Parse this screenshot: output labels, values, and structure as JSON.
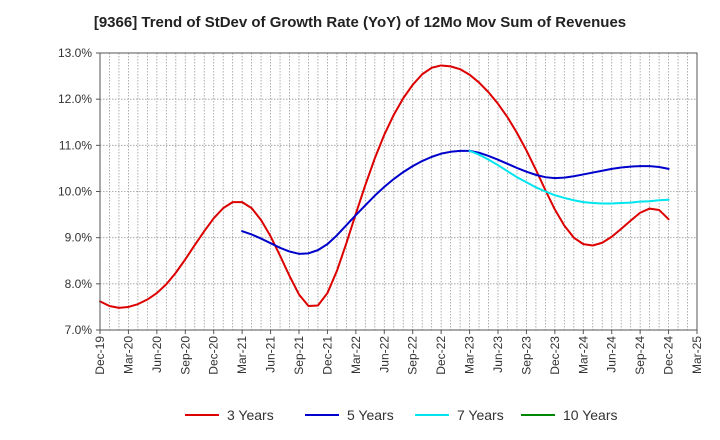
{
  "chart_data": {
    "type": "line",
    "title": "[9366]  Trend of StDev of Growth Rate (YoY) of 12Mo Mov Sum of Revenues",
    "xlabel": "",
    "ylabel": "",
    "ylim": [
      7.0,
      13.0
    ],
    "y_ticks": [
      7.0,
      8.0,
      9.0,
      10.0,
      11.0,
      12.0,
      13.0
    ],
    "y_tick_labels": [
      "7.0%",
      "8.0%",
      "9.0%",
      "10.0%",
      "11.0%",
      "12.0%",
      "13.0%"
    ],
    "x_start": "Dec-19",
    "x_range_months": [
      0,
      63
    ],
    "x_tick_labels": [
      "Dec-19",
      "Mar-20",
      "Jun-20",
      "Sep-20",
      "Dec-20",
      "Mar-21",
      "Jun-21",
      "Sep-21",
      "Dec-21",
      "Mar-22",
      "Jun-22",
      "Sep-22",
      "Dec-22",
      "Mar-23",
      "Jun-23",
      "Sep-23",
      "Dec-23",
      "Mar-24",
      "Jun-24",
      "Sep-24",
      "Dec-24",
      "Mar-25"
    ],
    "grid": true,
    "legend_position": "bottom",
    "series": [
      {
        "name": "3 Years",
        "color": "#dd0000",
        "start_month": 0,
        "values": [
          7.62,
          7.52,
          7.48,
          7.5,
          7.56,
          7.66,
          7.8,
          7.99,
          8.24,
          8.53,
          8.84,
          9.14,
          9.42,
          9.64,
          9.77,
          9.77,
          9.64,
          9.38,
          9.03,
          8.61,
          8.17,
          7.77,
          7.52,
          7.53,
          7.8,
          8.28,
          8.88,
          9.52,
          10.14,
          10.72,
          11.23,
          11.66,
          12.02,
          12.31,
          12.54,
          12.68,
          12.73,
          12.71,
          12.65,
          12.53,
          12.36,
          12.15,
          11.9,
          11.61,
          11.27,
          10.89,
          10.47,
          10.03,
          9.61,
          9.26,
          9.0,
          8.86,
          8.83,
          8.89,
          9.02,
          9.19,
          9.37,
          9.54,
          9.63,
          9.6,
          9.4
        ]
      },
      {
        "name": "5 Years",
        "color": "#0000cc",
        "start_month": 15,
        "values": [
          9.14,
          9.07,
          8.98,
          8.88,
          8.78,
          8.7,
          8.65,
          8.66,
          8.73,
          8.86,
          9.05,
          9.27,
          9.49,
          9.7,
          9.91,
          10.1,
          10.27,
          10.42,
          10.55,
          10.66,
          10.75,
          10.82,
          10.86,
          10.88,
          10.88,
          10.84,
          10.77,
          10.69,
          10.6,
          10.51,
          10.43,
          10.36,
          10.31,
          10.29,
          10.3,
          10.33,
          10.37,
          10.41,
          10.45,
          10.49,
          10.52,
          10.54,
          10.55,
          10.55,
          10.53,
          10.49
        ]
      },
      {
        "name": "7 Years",
        "color": "#00e5ee",
        "start_month": 39,
        "values": [
          10.88,
          10.8,
          10.69,
          10.57,
          10.44,
          10.31,
          10.2,
          10.09,
          10.0,
          9.92,
          9.86,
          9.81,
          9.77,
          9.75,
          9.74,
          9.74,
          9.75,
          9.76,
          9.78,
          9.79,
          9.81,
          9.82
        ]
      },
      {
        "name": "10 Years",
        "color": "#008800",
        "start_month": 0,
        "values": []
      }
    ]
  }
}
